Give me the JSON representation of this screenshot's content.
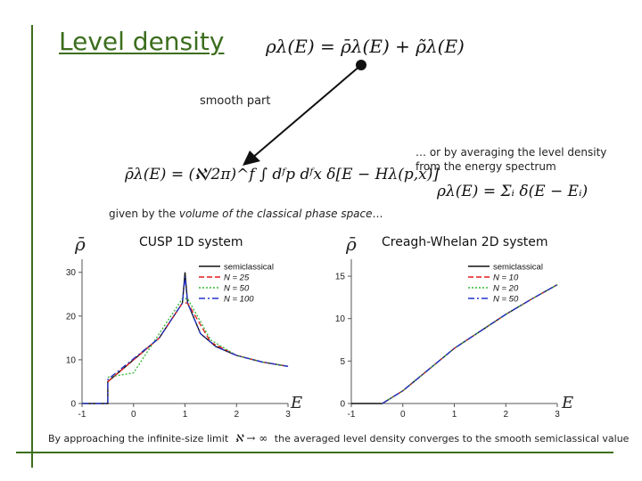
{
  "slide": {
    "title": "Level density",
    "eq_main": "ρλ(E) = ρ̄λ(E) + ρ̃λ(E)",
    "smooth_label": "smooth part",
    "averaging_note_1": "… or by averaging the level density",
    "averaging_note_2": "from the energy spectrum",
    "eq_weyl": "ρ̄λ(E) = (ℵ/2π)^f ∫ dᶠp dᶠx δ[E − Hλ(p,x)]",
    "eq_sum": "ρλ(E) = Σᵢ δ(E − Eᵢ)",
    "volume_note_1": "given by the ",
    "volume_note_em": "volume of the classical phase space",
    "volume_note_2": "…",
    "footer_1": "By approaching the infinite-size limit",
    "footer_math": "ℵ → ∞",
    "footer_2": "the averaged level density converges to the smooth semiclassical value"
  },
  "chart_data": [
    {
      "type": "line",
      "title": "CUSP 1D system",
      "ylabel": "ρ̄",
      "xlabel": "E",
      "xlim": [
        -1,
        3
      ],
      "ylim": [
        0,
        33
      ],
      "xticks": [
        "-1",
        "0",
        "1",
        "2",
        "3"
      ],
      "yticks": [
        "0",
        "10",
        "20",
        "30"
      ],
      "legend_position": "top-right",
      "series": [
        {
          "name": "semiclassical",
          "color": "#111111",
          "style": "solid",
          "x": [
            -1,
            -0.5,
            -0.5,
            0.5,
            0.95,
            1.0,
            1.05,
            1.3,
            1.6,
            2.0,
            2.5,
            3.0
          ],
          "y": [
            0,
            0,
            5,
            15,
            23,
            30,
            23,
            16,
            13,
            11,
            9.5,
            8.5
          ]
        },
        {
          "name": "N = 25",
          "color": "#e41a1c",
          "style": "dashed",
          "x": [
            -0.5,
            0.0,
            0.5,
            0.95,
            1.05,
            1.5,
            2.0,
            2.5,
            3.0
          ],
          "y": [
            5,
            10,
            15,
            23,
            23,
            14,
            11,
            9.5,
            8.5
          ]
        },
        {
          "name": "N = 50",
          "color": "#33b533",
          "style": "dotted",
          "x": [
            -0.5,
            0.0,
            0.5,
            0.95,
            1.05,
            1.5,
            2.0,
            2.5,
            3.0
          ],
          "y": [
            6,
            7,
            16,
            24,
            24,
            14.5,
            11,
            9.5,
            8.5
          ]
        },
        {
          "name": "N = 100",
          "color": "#2233cc",
          "style": "dashdot",
          "x": [
            -1,
            -0.5,
            -0.5,
            0.5,
            0.95,
            1.0,
            1.05,
            1.3,
            1.6,
            2.0,
            2.5,
            3.0
          ],
          "y": [
            0,
            0,
            5.5,
            15,
            23,
            29,
            23,
            16,
            13,
            11,
            9.5,
            8.5
          ]
        }
      ]
    },
    {
      "type": "line",
      "title": "Creagh-Whelan 2D system",
      "ylabel": "ρ̄",
      "xlabel": "E",
      "xlim": [
        -1,
        3
      ],
      "ylim": [
        0,
        17
      ],
      "xticks": [
        "-1",
        "0",
        "1",
        "2",
        "3"
      ],
      "yticks": [
        "0",
        "5",
        "10",
        "15"
      ],
      "legend_position": "top-right",
      "series": [
        {
          "name": "semiclassical",
          "color": "#111111",
          "style": "solid",
          "x": [
            -1,
            -0.4,
            0,
            0.5,
            1,
            1.5,
            2,
            2.5,
            3
          ],
          "y": [
            0,
            0,
            1.5,
            4,
            6.5,
            8.5,
            10.5,
            12.3,
            14
          ]
        },
        {
          "name": "N = 10",
          "color": "#e41a1c",
          "style": "dashed",
          "x": [
            -0.4,
            0,
            0.5,
            1,
            1.5,
            2,
            2.5,
            3
          ],
          "y": [
            0,
            1.5,
            4,
            6.5,
            8.5,
            10.5,
            12.3,
            14
          ]
        },
        {
          "name": "N = 20",
          "color": "#33b533",
          "style": "dotted",
          "x": [
            -0.4,
            0,
            0.5,
            1,
            1.5,
            2,
            2.5,
            3
          ],
          "y": [
            0,
            1.5,
            4,
            6.5,
            8.5,
            10.5,
            12.3,
            14
          ]
        },
        {
          "name": "N = 50",
          "color": "#2233cc",
          "style": "dashdot",
          "x": [
            -0.4,
            0,
            0.5,
            1,
            1.5,
            2,
            2.5,
            3
          ],
          "y": [
            0,
            1.5,
            4,
            6.5,
            8.5,
            10.5,
            12.3,
            14
          ]
        }
      ]
    }
  ]
}
